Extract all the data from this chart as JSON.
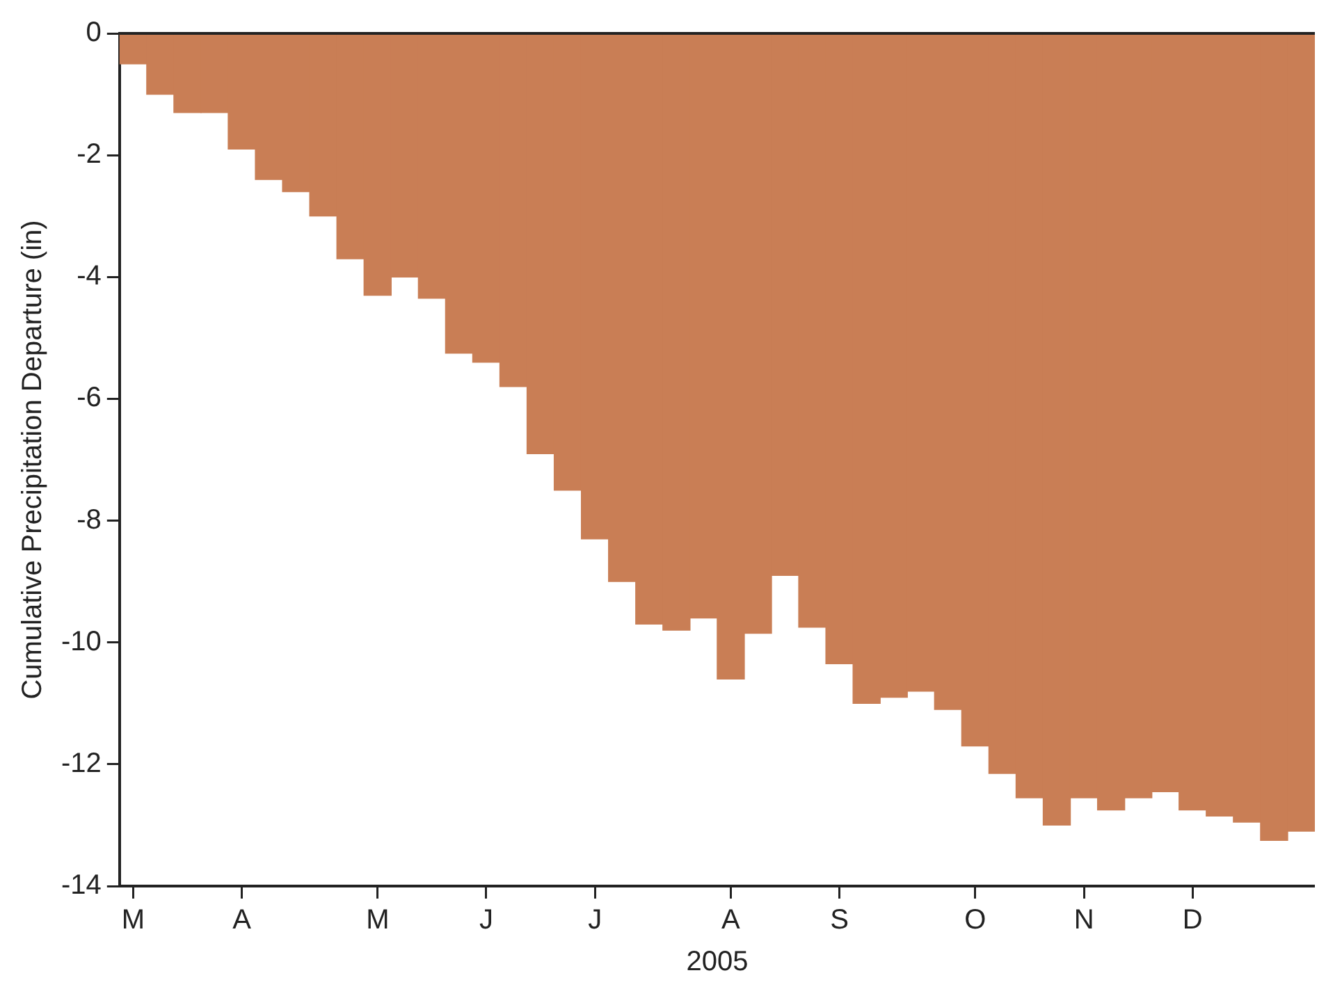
{
  "chart_data": {
    "type": "bar",
    "xlabel": "2005",
    "ylabel": "Cumulative Precipitation Departure (in)",
    "categories": [
      "M",
      null,
      null,
      null,
      "A",
      null,
      null,
      null,
      null,
      "M",
      null,
      null,
      null,
      "J",
      null,
      null,
      null,
      "J",
      null,
      null,
      null,
      null,
      "A",
      null,
      null,
      null,
      "S",
      null,
      null,
      null,
      null,
      "O",
      null,
      null,
      null,
      "N",
      null,
      null,
      null,
      "D",
      null,
      null,
      null,
      null
    ],
    "values": [
      -0.5,
      -1.0,
      -1.3,
      -1.3,
      -1.9,
      -2.4,
      -2.6,
      -3.0,
      -3.7,
      -4.3,
      -4.0,
      -4.35,
      -5.25,
      -5.4,
      -5.8,
      -6.9,
      -7.5,
      -8.3,
      -9.0,
      -9.7,
      -9.8,
      -9.6,
      -10.6,
      -9.85,
      -8.9,
      -9.75,
      -10.35,
      -11.0,
      -10.9,
      -10.8,
      -11.1,
      -11.7,
      -12.15,
      -12.55,
      -13.0,
      -12.55,
      -12.75,
      -12.55,
      -12.45,
      -12.75,
      -12.85,
      -12.95,
      -13.25,
      -13.1
    ],
    "color": "#c97e55",
    "ylim": [
      -14,
      0
    ],
    "yticks": [
      0,
      -2,
      -4,
      -6,
      -8,
      -10,
      -12,
      -14
    ],
    "grid": false,
    "legend": false
  }
}
